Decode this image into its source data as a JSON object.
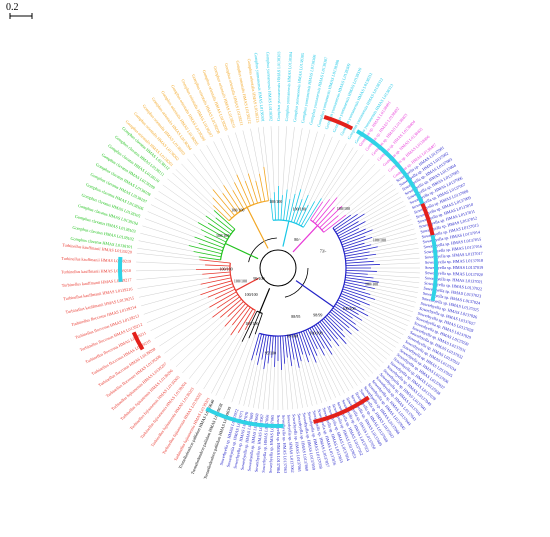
{
  "scale_bar": {
    "label": "0.2",
    "value": 0.2
  },
  "colors": {
    "outgroup": "#000000",
    "red_clade": "#e8382f",
    "green_clade": "#22c21e",
    "orange_clade": "#f2a623",
    "cyan_clade": "#19c7e6",
    "magenta_clade": "#e83ad8",
    "blue_clade": "#2323c8",
    "red_bar": "#e3201b",
    "cyan_bar": "#2fd3e6"
  },
  "clades": [
    {
      "color": "red_clade",
      "start": 118,
      "end": 186,
      "leaves": [
        "Turbinellus fujisanensis HMAS L0139201",
        "Turbinellus fujisanensis HMAS L0139202",
        "Turbinellus fujisanensis HMAS L0139203",
        "Turbinellus fujisanensis HMAS L0139204",
        "Turbinellus fujisanensis HMAS L0139205",
        "Turbinellus fujisanensis HMAS L0139206",
        "Turbinellus fujisanensis HMAS L0139207",
        "Turbinellus floccosus HMAS L0139208",
        "Turbinellus floccosus HMAS L0139209",
        "Turbinellus floccosus HMAS L0139210",
        "Turbinellus floccosus HMAS L0139211",
        "Turbinellus floccosus HMAS L0139212",
        "Turbinellus floccosus HMAS L0139213",
        "Turbinellus floccosus HMAS L0139214",
        "Turbinellus kauffmanii HMAS L0139215",
        "Turbinellus kauffmanii HMAS L0139216",
        "Turbinellus kauffmanii HMAS L0139217",
        "Turbinellus kauffmanii HMAS L0139218",
        "Turbinellus kauffmanii HMAS L0139219",
        "Turbinellus kauffmanii HMAS L0139220"
      ]
    },
    {
      "color": "green_clade",
      "start": 188,
      "end": 222,
      "leaves": [
        "Gomphus clavatus HMAS L0138101",
        "Gomphus clavatus HMAS L0138102",
        "Gomphus clavatus HMAS L0138103",
        "Gomphus clavatus HMAS L0138104",
        "Gomphus clavatus HMAS L0138105",
        "Gomphus clavatus HMAS L0138106",
        "Gomphus clavatus HMAS L0138107",
        "Gomphus clavatus HMAS L0138108",
        "Gomphus clavatus HMAS L0138109",
        "Gomphus clavatus HMAS L0138110",
        "Gomphus clavatus HMAS L0138111",
        "Gomphus clavatus HMAS L0138112"
      ]
    },
    {
      "color": "orange_clade",
      "start": 224,
      "end": 262,
      "leaves": [
        "Gomphus orientalis HMAS L0138201",
        "Gomphus orientalis HMAS L0138202",
        "Gomphus orientalis HMAS L0138203",
        "Gomphus orientalis HMAS L0138204",
        "Gomphus orientalis HMAS L0138205",
        "Gomphus orientalis HMAS L0138206",
        "Gomphus orientalis HMAS L0138207",
        "Gomphus orientalis HMAS L0138208",
        "Gomphus orientalis HMAS L0138209",
        "Gomphus orientalis HMAS L0138210",
        "Gomphus orientalis HMAS L0138211",
        "Gomphus orientalis HMAS L0138212",
        "Gomphus orientalis HMAS L0138213"
      ]
    },
    {
      "color": "cyan_clade",
      "start": 264,
      "end": 302,
      "leaves": [
        "Gomphus yunnanensis HMAS L0138301",
        "Gomphus yunnanensis HMAS L0138302",
        "Gomphus yunnanensis HMAS L0138303",
        "Gomphus yunnanensis HMAS L0138304",
        "Gomphus yunnanensis HMAS L0138305",
        "Gomphus yunnanensis HMAS L0138306",
        "Gomphus yunnanensis HMAS L0138307",
        "Gomphus yunnanensis HMAS L0138308",
        "Gomphus yunnanensis HMAS L0138309",
        "Gomphus yunnanensis HMAS L0138310",
        "Gomphus yunnanensis HMAS L0138311",
        "Gomphus yunnanensis HMAS L0138312",
        "Gomphus yunnanensis HMAS L0138313"
      ]
    },
    {
      "color": "magenta_clade",
      "start": 304,
      "end": 322,
      "leaves": [
        "Gomphus sp. HMAS L0138401",
        "Gomphus sp. HMAS L0138402",
        "Gomphus sp. HMAS L0138403",
        "Gomphus sp. HMAS L0138404",
        "Gomphus sp. HMAS L0138405",
        "Gomphus sp. HMAS L0138406",
        "Gomphus sp. HMAS L0138407"
      ]
    },
    {
      "color": "blue_clade",
      "start": 324,
      "end": 466,
      "leaves": [
        "Sowerbyella sp. HMAS L0137001",
        "Sowerbyella sp. HMAS L0137002",
        "Sowerbyella sp. HMAS L0137003",
        "Sowerbyella sp. HMAS L0137004",
        "Sowerbyella sp. HMAS L0137005",
        "Sowerbyella sp. HMAS L0137006",
        "Sowerbyella sp. HMAS L0137007",
        "Sowerbyella sp. HMAS L0137008",
        "Sowerbyella sp. HMAS L0137009",
        "Sowerbyella sp. HMAS L0137010",
        "Sowerbyella sp. HMAS L0137011",
        "Sowerbyella sp. HMAS L0137012",
        "Sowerbyella sp. HMAS L0137013",
        "Sowerbyella sp. HMAS L0137014",
        "Sowerbyella sp. HMAS L0137015",
        "Sowerbyella sp. HMAS L0137016",
        "Sowerbyella sp. HMAS L0137017",
        "Sowerbyella sp. HMAS L0137018",
        "Sowerbyella sp. HMAS L0137019",
        "Sowerbyella sp. HMAS L0137020",
        "Sowerbyella sp. HMAS L0137021",
        "Sowerbyella sp. HMAS L0137022",
        "Sowerbyella sp. HMAS L0137023",
        "Sowerbyella sp. HMAS L0137024",
        "Sowerbyella sp. HMAS L0137025",
        "Sowerbyella sp. HMAS L0137026",
        "Sowerbyella sp. HMAS L0137027",
        "Sowerbyella sp. HMAS L0137028",
        "Sowerbyella sp. HMAS L0137029",
        "Sowerbyella sp. HMAS L0137030",
        "Sowerbyella sp. HMAS L0137031",
        "Sowerbyella sp. HMAS L0137032",
        "Sowerbyella sp. HMAS L0137033",
        "Sowerbyella sp. HMAS L0137034",
        "Sowerbyella sp. HMAS L0137035",
        "Sowerbyella sp. HMAS L0137036",
        "Sowerbyella sp. HMAS L0137037",
        "Sowerbyella sp. HMAS L0137038",
        "Sowerbyella sp. HMAS L0137039",
        "Sowerbyella sp. HMAS L0137040",
        "Sowerbyella sp. HMAS L0137041",
        "Sowerbyella sp. HMAS L0137042",
        "Sowerbyella sp. HMAS L0137043",
        "Sowerbyella sp. HMAS L0137044",
        "Sowerbyella sp. HMAS L0137045",
        "Sowerbyella sp. HMAS L0137046",
        "Sowerbyella sp. HMAS L0137047",
        "Sowerbyella sp. HMAS L0137048",
        "Sowerbyella sp. HMAS L0137049",
        "Sowerbyella sp. HMAS L0137050",
        "Sowerbyella sp. HMAS L0137051",
        "Sowerbyella sp. HMAS L0137052",
        "Sowerbyella sp. HMAS L0137053",
        "Sowerbyella sp. HMAS L0137054",
        "Sowerbyella sp. HMAS L0137055",
        "Sowerbyella sp. HMAS L0137056",
        "Sowerbyella sp. HMAS L0137057",
        "Sowerbyella sp. HMAS L0137058",
        "Sowerbyella sp. HMAS L0137059",
        "Sowerbyella sp. HMAS L0137060",
        "Sowerbyella sp. HMAS L0137061",
        "Sowerbyella sp. HMAS L0137062",
        "Sowerbyella sp. HMAS L0137063",
        "Sowerbyella sp. HMAS L0137064",
        "Sowerbyella sp. HMAS L0137065",
        "Sowerbyella sp. HMAS L0137066",
        "Sowerbyella sp. HMAS L0137067",
        "Sowerbyella sp. HMAS L0137068",
        "Sowerbyella sp. HMAS L0137069",
        "Sowerbyella sp. HMAS L0137070",
        "Sowerbyella sp. HMAS L0137071",
        "Sowerbyella sp. HMAS L0137072"
      ]
    },
    {
      "color": "outgroup",
      "start": 469,
      "end": 476,
      "leaves": [
        "Tremellodendron pallidum HMAS L0139639",
        "Tremellodendron pallidum HMAS L0139638",
        "Tremellodendron pallidum HMAS L0139640"
      ]
    }
  ],
  "arcs": [
    {
      "color": "red_bar",
      "start": 287,
      "end": 298
    },
    {
      "color": "cyan_bar",
      "start": 300,
      "end": 337
    },
    {
      "color": "red_bar",
      "start": 336,
      "end": 348
    },
    {
      "color": "cyan_bar",
      "start": 348,
      "end": 372
    },
    {
      "color": "red_bar",
      "start": 55,
      "end": 77
    },
    {
      "color": "cyan_bar",
      "start": 88,
      "end": 117
    },
    {
      "color": "red_bar",
      "start": 149,
      "end": 156
    },
    {
      "color": "cyan_bar",
      "start": 175,
      "end": 184
    }
  ],
  "supports": [
    {
      "text": "100/100",
      "a": 210,
      "r": 64
    },
    {
      "text": "100/100",
      "a": 235,
      "r": 70
    },
    {
      "text": "100/100",
      "a": 268,
      "r": 66
    },
    {
      "text": "100/100",
      "a": 290,
      "r": 62
    },
    {
      "text": "100/100",
      "a": 318,
      "r": 88
    },
    {
      "text": "100/100",
      "a": 178,
      "r": 52
    },
    {
      "text": "100/100",
      "a": 160,
      "r": 40
    },
    {
      "text": "100/100",
      "a": 135,
      "r": 38
    },
    {
      "text": "100/100",
      "a": 115,
      "r": 62
    },
    {
      "text": "100/100",
      "a": 60,
      "r": 76
    },
    {
      "text": "100/100",
      "a": 30,
      "r": 82
    },
    {
      "text": "100/100",
      "a": 10,
      "r": 95
    },
    {
      "text": "99/100",
      "a": 78,
      "r": 70
    },
    {
      "text": "98/99",
      "a": 50,
      "r": 62
    },
    {
      "text": "95/100",
      "a": 95,
      "r": 86
    },
    {
      "text": "88/95",
      "a": 70,
      "r": 52
    },
    {
      "text": "73/-",
      "a": 340,
      "r": 48
    },
    {
      "text": "80/-",
      "a": 305,
      "r": 34
    },
    {
      "text": "100/100",
      "a": 345,
      "r": 105
    },
    {
      "text": "99/100",
      "a": 150,
      "r": 22
    }
  ]
}
